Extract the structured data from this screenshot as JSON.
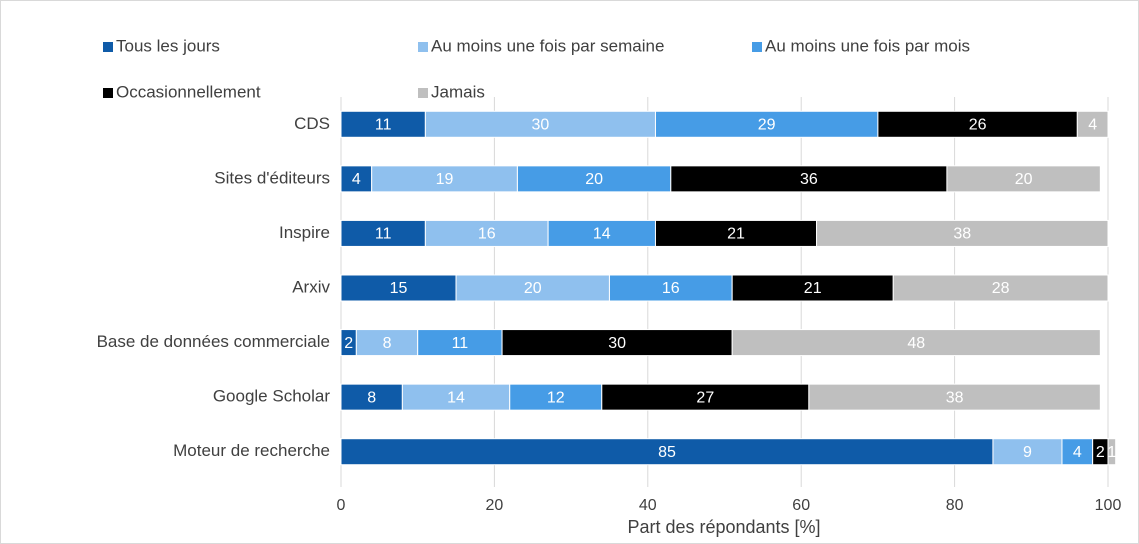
{
  "chart_data": {
    "type": "stacked_barh",
    "xlabel": "Part des répondants [%]",
    "categories": [
      "CDS",
      "Sites d'éditeurs",
      "Inspire",
      "Arxiv",
      "Base de données commerciale",
      "Google Scholar",
      "Moteur de recherche"
    ],
    "series": [
      {
        "name": "Tous les jours",
        "color": "#0f5ba8",
        "values": [
          11,
          4,
          11,
          15,
          2,
          8,
          85
        ]
      },
      {
        "name": "Au moins une fois par semaine",
        "color": "#8fc0ee",
        "values": [
          30,
          19,
          16,
          20,
          8,
          14,
          9
        ]
      },
      {
        "name": "Au moins une fois par mois",
        "color": "#469ce6",
        "values": [
          29,
          20,
          14,
          16,
          11,
          12,
          4
        ]
      },
      {
        "name": "Occasionnellement",
        "color": "#000000",
        "values": [
          26,
          36,
          21,
          21,
          30,
          27,
          2
        ]
      },
      {
        "name": "Jamais",
        "color": "#bfbfbf",
        "values": [
          4,
          20,
          38,
          28,
          48,
          38,
          1
        ]
      }
    ],
    "xlim": [
      0,
      100
    ],
    "xticks": [
      0,
      20,
      40,
      60,
      80,
      100
    ],
    "grid": true,
    "legend": "top"
  }
}
